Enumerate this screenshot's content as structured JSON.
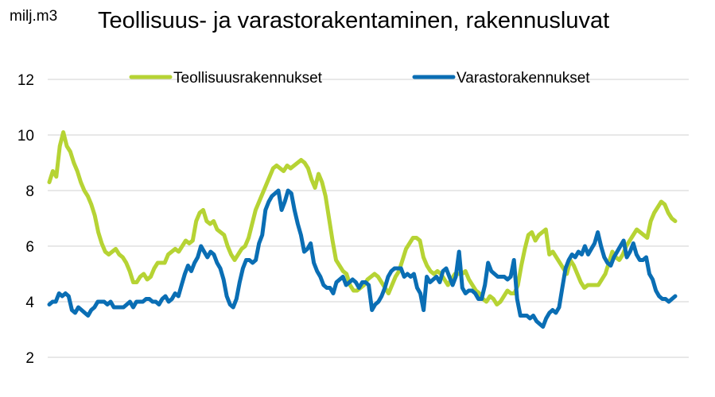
{
  "unit_label": "milj.m3",
  "chart_data": {
    "type": "line",
    "title": "Teollisuus- ja varastorakentaminen, rakennusluvat",
    "xlabel": "",
    "ylabel": "milj.m3",
    "ylim": [
      2,
      12
    ],
    "yticks": [
      2,
      4,
      6,
      8,
      10,
      12
    ],
    "grid": true,
    "legend_position": "top",
    "series": [
      {
        "name": "Teollisuusrakennukset",
        "color": "#b6d334",
        "values": [
          8.3,
          8.7,
          8.5,
          9.6,
          10.1,
          9.6,
          9.4,
          9.0,
          8.7,
          8.3,
          8.0,
          7.8,
          7.5,
          7.1,
          6.5,
          6.1,
          5.8,
          5.7,
          5.8,
          5.9,
          5.7,
          5.6,
          5.4,
          5.1,
          4.7,
          4.7,
          4.9,
          5.0,
          4.8,
          4.9,
          5.2,
          5.4,
          5.4,
          5.4,
          5.7,
          5.8,
          5.9,
          5.8,
          6.0,
          6.2,
          6.1,
          6.2,
          6.9,
          7.2,
          7.3,
          6.9,
          6.8,
          6.9,
          6.6,
          6.5,
          6.4,
          6.0,
          5.7,
          5.5,
          5.7,
          5.9,
          6.0,
          6.3,
          6.8,
          7.3,
          7.6,
          7.9,
          8.2,
          8.5,
          8.8,
          8.9,
          8.8,
          8.7,
          8.9,
          8.8,
          8.9,
          9.0,
          9.1,
          9.0,
          8.8,
          8.4,
          8.1,
          8.6,
          8.3,
          7.8,
          7.0,
          6.2,
          5.5,
          5.3,
          5.1,
          5.0,
          4.6,
          4.4,
          4.4,
          4.5,
          4.6,
          4.8,
          4.9,
          5.0,
          4.9,
          4.7,
          4.5,
          4.3,
          4.6,
          4.9,
          5.1,
          5.5,
          5.9,
          6.1,
          6.3,
          6.3,
          6.2,
          5.6,
          5.3,
          5.1,
          5.0,
          5.1,
          5.0,
          4.8,
          4.6,
          4.8,
          5.0,
          5.0,
          5.0,
          5.1,
          4.8,
          4.6,
          4.4,
          4.3,
          4.1,
          4.0,
          4.2,
          4.1,
          3.9,
          4.0,
          4.2,
          4.4,
          4.3,
          4.3,
          4.6,
          5.3,
          5.9,
          6.4,
          6.5,
          6.2,
          6.4,
          6.5,
          6.6,
          5.7,
          5.8,
          5.6,
          5.4,
          5.2,
          5.0,
          5.5,
          5.3,
          5.0,
          4.7,
          4.5,
          4.6,
          4.6,
          4.6,
          4.6,
          4.8,
          5.0,
          5.4,
          5.8,
          5.6,
          5.5,
          5.7,
          6.0,
          6.2,
          6.4,
          6.6,
          6.5,
          6.4,
          6.3,
          6.9,
          7.2,
          7.4,
          7.6,
          7.5,
          7.2,
          7.0,
          6.9
        ]
      },
      {
        "name": "Varastorakennukset",
        "color": "#0a6eb4",
        "values": [
          3.9,
          4.0,
          4.0,
          4.3,
          4.2,
          4.3,
          4.2,
          3.7,
          3.6,
          3.8,
          3.7,
          3.6,
          3.5,
          3.7,
          3.8,
          4.0,
          4.0,
          4.0,
          3.9,
          4.0,
          3.8,
          3.8,
          3.8,
          3.8,
          3.9,
          4.0,
          3.8,
          4.0,
          4.0,
          4.0,
          4.1,
          4.1,
          4.0,
          4.0,
          3.9,
          4.1,
          4.2,
          4.0,
          4.1,
          4.3,
          4.2,
          4.6,
          5.0,
          5.3,
          5.1,
          5.4,
          5.6,
          6.0,
          5.8,
          5.6,
          5.8,
          5.7,
          5.4,
          5.2,
          4.8,
          4.2,
          3.9,
          3.8,
          4.1,
          4.7,
          5.2,
          5.5,
          5.5,
          5.4,
          5.5,
          6.1,
          6.4,
          7.3,
          7.6,
          7.8,
          7.9,
          8.0,
          7.3,
          7.6,
          8.0,
          7.9,
          7.3,
          6.8,
          6.4,
          5.8,
          5.9,
          6.1,
          5.4,
          5.1,
          4.9,
          4.6,
          4.5,
          4.5,
          4.3,
          4.7,
          4.8,
          4.9,
          4.6,
          4.7,
          4.8,
          4.7,
          4.5,
          4.7,
          4.7,
          4.6,
          3.7,
          3.9,
          4.0,
          4.2,
          4.5,
          4.9,
          5.1,
          5.2,
          5.2,
          5.2,
          4.9,
          5.0,
          4.9,
          5.0,
          4.5,
          4.3,
          3.7,
          4.9,
          4.7,
          4.8,
          4.9,
          4.7,
          5.1,
          5.2,
          4.9,
          4.6,
          4.9,
          5.8,
          4.5,
          4.3,
          4.4,
          4.4,
          4.3,
          4.1,
          4.1,
          4.6,
          5.4,
          5.1,
          5.0,
          4.9,
          4.9,
          4.9,
          4.8,
          4.9,
          5.5,
          4.1,
          3.5,
          3.5,
          3.5,
          3.4,
          3.5,
          3.3,
          3.2,
          3.1,
          3.4,
          3.6,
          3.7,
          3.6,
          3.8,
          4.5,
          5.2,
          5.5,
          5.7,
          5.6,
          5.8,
          5.7,
          6.0,
          5.7,
          5.9,
          6.1,
          6.5,
          6.0,
          5.6,
          5.4,
          5.3,
          5.6,
          5.8,
          6.0,
          6.2,
          5.6,
          5.8,
          6.1,
          5.7,
          5.5,
          5.5,
          5.6,
          5.0,
          4.8,
          4.4,
          4.2,
          4.1,
          4.1,
          4.0,
          4.1,
          4.2
        ]
      }
    ]
  }
}
